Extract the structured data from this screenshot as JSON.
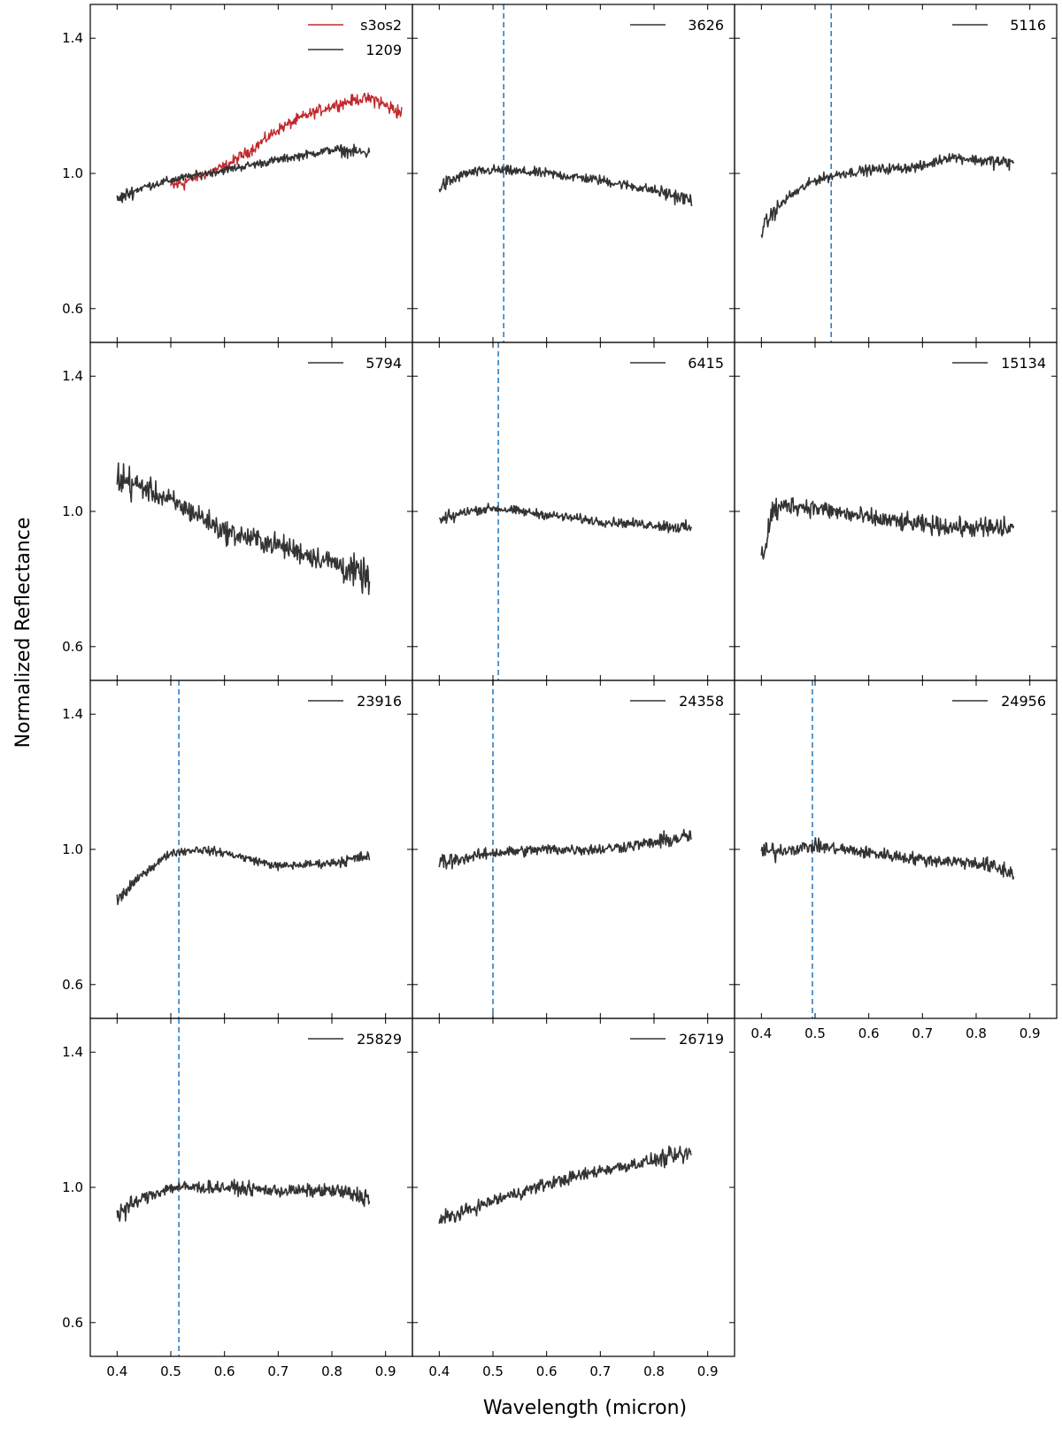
{
  "figure": {
    "xlabel": "Wavelength (micron)",
    "ylabel": "Normalized Reflectance"
  },
  "chart_data": {
    "type": "line",
    "xlim": [
      0.35,
      0.95
    ],
    "ylim": [
      0.5,
      1.5
    ],
    "xticks": [
      0.4,
      0.5,
      0.6,
      0.7,
      0.8,
      0.9
    ],
    "xtick_labels": [
      "0.4",
      "0.5",
      "0.6",
      "0.7",
      "0.8",
      "0.9"
    ],
    "yticks": [
      0.6,
      1.0,
      1.4
    ],
    "ytick_labels": [
      "0.6",
      "1.0",
      "1.4"
    ],
    "colors": {
      "spectrum": "#333333",
      "reference": "#c0282d",
      "band_marker": "#2f7fc1"
    },
    "panels": [
      {
        "series": [
          {
            "name": "s3os2",
            "color": "#c0282d",
            "x_range": [
              0.5,
              0.93
            ],
            "noise": 0.025,
            "points": [
              [
                0.5,
                0.96
              ],
              [
                0.55,
                0.99
              ],
              [
                0.6,
                1.02
              ],
              [
                0.65,
                1.07
              ],
              [
                0.7,
                1.13
              ],
              [
                0.75,
                1.17
              ],
              [
                0.8,
                1.2
              ],
              [
                0.85,
                1.22
              ],
              [
                0.88,
                1.22
              ],
              [
                0.9,
                1.2
              ],
              [
                0.93,
                1.18
              ]
            ]
          },
          {
            "name": "1209",
            "color": "#333333",
            "x_range": [
              0.4,
              0.87
            ],
            "noise": 0.018,
            "points": [
              [
                0.4,
                0.92
              ],
              [
                0.42,
                0.94
              ],
              [
                0.45,
                0.96
              ],
              [
                0.5,
                0.98
              ],
              [
                0.6,
                1.01
              ],
              [
                0.7,
                1.04
              ],
              [
                0.8,
                1.07
              ],
              [
                0.87,
                1.06
              ]
            ]
          }
        ]
      },
      {
        "series": [
          {
            "name": "3626",
            "color": "#333333",
            "x_range": [
              0.4,
              0.87
            ],
            "noise": 0.022,
            "points": [
              [
                0.4,
                0.96
              ],
              [
                0.45,
                1.0
              ],
              [
                0.5,
                1.01
              ],
              [
                0.6,
                1.0
              ],
              [
                0.7,
                0.98
              ],
              [
                0.8,
                0.95
              ],
              [
                0.87,
                0.92
              ]
            ]
          }
        ],
        "band_center": 0.52
      },
      {
        "series": [
          {
            "name": "5116",
            "color": "#333333",
            "x_range": [
              0.4,
              0.87
            ],
            "noise": 0.022,
            "points": [
              [
                0.4,
                0.83
              ],
              [
                0.42,
                0.88
              ],
              [
                0.45,
                0.93
              ],
              [
                0.5,
                0.98
              ],
              [
                0.55,
                1.0
              ],
              [
                0.6,
                1.01
              ],
              [
                0.7,
                1.02
              ],
              [
                0.75,
                1.05
              ],
              [
                0.8,
                1.04
              ],
              [
                0.87,
                1.03
              ]
            ]
          }
        ],
        "band_center": 0.53
      },
      {
        "series": [
          {
            "name": "5794",
            "color": "#333333",
            "x_range": [
              0.4,
              0.87
            ],
            "noise": 0.05,
            "points": [
              [
                0.4,
                1.1
              ],
              [
                0.45,
                1.07
              ],
              [
                0.5,
                1.03
              ],
              [
                0.55,
                0.99
              ],
              [
                0.6,
                0.94
              ],
              [
                0.7,
                0.9
              ],
              [
                0.8,
                0.85
              ],
              [
                0.87,
                0.8
              ]
            ]
          }
        ]
      },
      {
        "series": [
          {
            "name": "6415",
            "color": "#333333",
            "x_range": [
              0.4,
              0.87
            ],
            "noise": 0.02,
            "points": [
              [
                0.4,
                0.97
              ],
              [
                0.45,
                1.0
              ],
              [
                0.5,
                1.01
              ],
              [
                0.6,
                0.99
              ],
              [
                0.7,
                0.97
              ],
              [
                0.8,
                0.96
              ],
              [
                0.87,
                0.95
              ]
            ]
          }
        ],
        "band_center": 0.51
      },
      {
        "series": [
          {
            "name": "15134",
            "color": "#333333",
            "x_range": [
              0.4,
              0.87
            ],
            "noise": 0.04,
            "points": [
              [
                0.4,
                0.85
              ],
              [
                0.42,
                1.0
              ],
              [
                0.45,
                1.02
              ],
              [
                0.5,
                1.01
              ],
              [
                0.6,
                0.98
              ],
              [
                0.7,
                0.96
              ],
              [
                0.8,
                0.95
              ],
              [
                0.87,
                0.95
              ]
            ]
          }
        ]
      },
      {
        "series": [
          {
            "name": "23916",
            "color": "#333333",
            "x_range": [
              0.4,
              0.87
            ],
            "noise": 0.018,
            "points": [
              [
                0.4,
                0.85
              ],
              [
                0.45,
                0.93
              ],
              [
                0.5,
                0.99
              ],
              [
                0.55,
                1.0
              ],
              [
                0.6,
                0.99
              ],
              [
                0.7,
                0.95
              ],
              [
                0.8,
                0.96
              ],
              [
                0.87,
                0.98
              ]
            ]
          }
        ],
        "band_center": 0.515
      },
      {
        "series": [
          {
            "name": "24358",
            "color": "#333333",
            "x_range": [
              0.4,
              0.87
            ],
            "noise": 0.025,
            "points": [
              [
                0.4,
                0.96
              ],
              [
                0.5,
                0.99
              ],
              [
                0.6,
                1.0
              ],
              [
                0.7,
                1.0
              ],
              [
                0.8,
                1.02
              ],
              [
                0.87,
                1.04
              ]
            ]
          }
        ],
        "band_center": 0.5
      },
      {
        "series": [
          {
            "name": "24956",
            "color": "#333333",
            "x_range": [
              0.4,
              0.87
            ],
            "noise": 0.028,
            "points": [
              [
                0.4,
                0.99
              ],
              [
                0.5,
                1.01
              ],
              [
                0.6,
                0.99
              ],
              [
                0.7,
                0.97
              ],
              [
                0.8,
                0.96
              ],
              [
                0.87,
                0.93
              ]
            ]
          }
        ],
        "band_center": 0.495
      },
      {
        "series": [
          {
            "name": "25829",
            "color": "#333333",
            "x_range": [
              0.4,
              0.87
            ],
            "noise": 0.028,
            "points": [
              [
                0.4,
                0.92
              ],
              [
                0.45,
                0.97
              ],
              [
                0.5,
                1.0
              ],
              [
                0.6,
                1.0
              ],
              [
                0.7,
                0.99
              ],
              [
                0.8,
                0.99
              ],
              [
                0.87,
                0.97
              ]
            ]
          }
        ],
        "band_center": 0.515
      },
      {
        "series": [
          {
            "name": "26719",
            "color": "#333333",
            "x_range": [
              0.4,
              0.87
            ],
            "noise": 0.028,
            "points": [
              [
                0.4,
                0.9
              ],
              [
                0.5,
                0.96
              ],
              [
                0.6,
                1.01
              ],
              [
                0.7,
                1.05
              ],
              [
                0.8,
                1.08
              ],
              [
                0.87,
                1.1
              ]
            ]
          }
        ]
      }
    ]
  }
}
